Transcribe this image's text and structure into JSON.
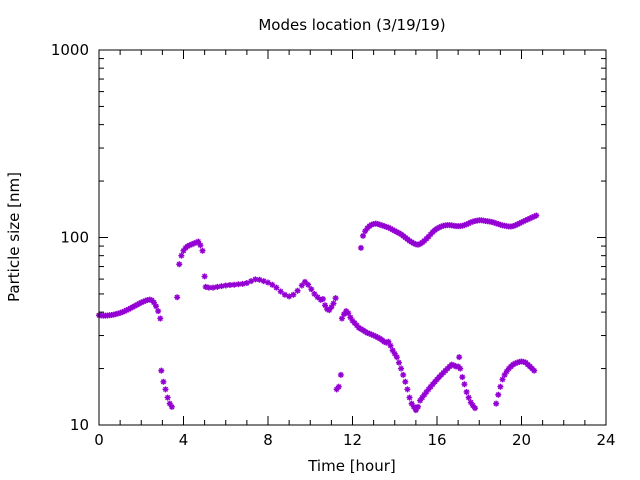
{
  "chart_data": {
    "type": "scatter",
    "title": "Modes location (3/19/19)",
    "xlabel": "Time [hour]",
    "ylabel": "Particle size [nm]",
    "xlim": [
      0,
      24
    ],
    "ylim": [
      10,
      1000
    ],
    "yscale": "log",
    "x_ticks": [
      0,
      4,
      8,
      12,
      16,
      20,
      24
    ],
    "x_tick_labels": [
      "0",
      "4",
      "8",
      "12",
      "16",
      "20",
      "24"
    ],
    "y_ticks": [
      10,
      100,
      1000
    ],
    "y_tick_labels": [
      "10",
      "100",
      "1000"
    ],
    "grid": false,
    "legend": "none",
    "marker": "asterisk",
    "marker_color": "#9400d3",
    "series": [
      {
        "points": [
          [
            0.0,
            38.5
          ],
          [
            0.1,
            38.4
          ],
          [
            0.2,
            38.3
          ],
          [
            0.3,
            38.3
          ],
          [
            0.4,
            38.4
          ],
          [
            0.5,
            38.5
          ],
          [
            0.6,
            38.6
          ],
          [
            0.7,
            38.8
          ],
          [
            0.8,
            39.0
          ],
          [
            0.9,
            39.3
          ],
          [
            1.0,
            39.6
          ],
          [
            1.1,
            40.0
          ],
          [
            1.2,
            40.4
          ],
          [
            1.3,
            40.9
          ],
          [
            1.4,
            41.4
          ],
          [
            1.5,
            42.0
          ],
          [
            1.6,
            42.6
          ],
          [
            1.7,
            43.2
          ],
          [
            1.8,
            43.8
          ],
          [
            1.9,
            44.4
          ],
          [
            2.0,
            45.0
          ],
          [
            2.1,
            45.5
          ],
          [
            2.2,
            46.0
          ],
          [
            2.3,
            46.4
          ],
          [
            2.4,
            46.6
          ],
          [
            2.5,
            46.3
          ],
          [
            2.6,
            45.0
          ],
          [
            2.7,
            43.0
          ],
          [
            2.8,
            40.5
          ],
          [
            2.9,
            37.0
          ],
          [
            2.95,
            19.5
          ],
          [
            3.05,
            17.0
          ],
          [
            3.15,
            15.5
          ],
          [
            3.25,
            14.0
          ],
          [
            3.35,
            13.0
          ],
          [
            3.45,
            12.5
          ],
          [
            3.7,
            48.0
          ],
          [
            3.8,
            72.0
          ],
          [
            3.9,
            80.0
          ],
          [
            4.0,
            85.0
          ],
          [
            4.1,
            88.0
          ],
          [
            4.2,
            90.0
          ],
          [
            4.3,
            91.0
          ],
          [
            4.4,
            92.0
          ],
          [
            4.5,
            93.0
          ],
          [
            4.6,
            94.0
          ],
          [
            4.7,
            95.0
          ],
          [
            4.8,
            91.0
          ],
          [
            4.9,
            85.0
          ],
          [
            5.0,
            62.0
          ],
          [
            5.05,
            54.5
          ],
          [
            5.2,
            54.0
          ],
          [
            5.4,
            54.0
          ],
          [
            5.6,
            54.5
          ],
          [
            5.8,
            55.0
          ],
          [
            6.0,
            55.5
          ],
          [
            6.2,
            55.8
          ],
          [
            6.4,
            56.0
          ],
          [
            6.6,
            56.3
          ],
          [
            6.8,
            56.6
          ],
          [
            7.0,
            57.2
          ],
          [
            7.2,
            58.5
          ],
          [
            7.4,
            59.8
          ],
          [
            7.6,
            59.5
          ],
          [
            7.8,
            58.5
          ],
          [
            8.0,
            57.5
          ],
          [
            8.2,
            56.0
          ],
          [
            8.4,
            54.0
          ],
          [
            8.6,
            51.5
          ],
          [
            8.8,
            49.5
          ],
          [
            9.0,
            48.5
          ],
          [
            9.2,
            49.5
          ],
          [
            9.4,
            52.0
          ],
          [
            9.6,
            55.5
          ],
          [
            9.75,
            58.0
          ],
          [
            9.9,
            56.0
          ],
          [
            10.05,
            53.0
          ],
          [
            10.2,
            50.0
          ],
          [
            10.35,
            48.0
          ],
          [
            10.5,
            46.5
          ],
          [
            10.6,
            47.0
          ],
          [
            10.7,
            43.5
          ],
          [
            10.8,
            41.5
          ],
          [
            10.9,
            41.0
          ],
          [
            11.0,
            42.5
          ],
          [
            11.1,
            44.5
          ],
          [
            11.2,
            47.5
          ],
          [
            11.25,
            15.5
          ],
          [
            11.35,
            16.0
          ],
          [
            11.45,
            18.5
          ],
          [
            11.5,
            37.0
          ],
          [
            11.6,
            39.0
          ],
          [
            11.7,
            40.5
          ],
          [
            11.8,
            39.5
          ],
          [
            11.9,
            37.5
          ],
          [
            12.0,
            36.0
          ],
          [
            12.1,
            35.0
          ],
          [
            12.2,
            34.0
          ],
          [
            12.3,
            33.0
          ],
          [
            12.4,
            32.5
          ],
          [
            12.5,
            32.0
          ],
          [
            12.6,
            31.5
          ],
          [
            12.7,
            31.0
          ],
          [
            12.8,
            30.7
          ],
          [
            12.9,
            30.4
          ],
          [
            13.0,
            30.0
          ],
          [
            13.1,
            29.7
          ],
          [
            13.2,
            29.3
          ],
          [
            13.3,
            28.9
          ],
          [
            13.4,
            28.4
          ],
          [
            13.5,
            27.8
          ],
          [
            13.6,
            27.5
          ],
          [
            13.7,
            27.8
          ],
          [
            13.8,
            26.5
          ],
          [
            13.9,
            25.0
          ],
          [
            14.0,
            24.0
          ],
          [
            14.1,
            23.0
          ],
          [
            14.2,
            21.5
          ],
          [
            14.3,
            20.0
          ],
          [
            14.4,
            18.5
          ],
          [
            14.5,
            17.0
          ],
          [
            14.6,
            15.5
          ],
          [
            14.7,
            14.0
          ],
          [
            14.8,
            13.0
          ],
          [
            14.9,
            12.5
          ],
          [
            15.0,
            12.0
          ],
          [
            15.1,
            12.5
          ],
          [
            15.2,
            13.5
          ],
          [
            15.3,
            14.0
          ],
          [
            15.4,
            14.5
          ],
          [
            15.5,
            15.0
          ],
          [
            15.6,
            15.5
          ],
          [
            15.7,
            16.0
          ],
          [
            15.8,
            16.5
          ],
          [
            15.9,
            17.0
          ],
          [
            16.0,
            17.5
          ],
          [
            16.1,
            18.0
          ],
          [
            16.2,
            18.5
          ],
          [
            16.3,
            19.0
          ],
          [
            16.4,
            19.5
          ],
          [
            16.5,
            20.0
          ],
          [
            16.6,
            20.5
          ],
          [
            16.7,
            21.0
          ],
          [
            16.8,
            20.8
          ],
          [
            16.9,
            20.5
          ],
          [
            17.0,
            20.5
          ],
          [
            17.05,
            23.0
          ],
          [
            17.1,
            20.0
          ],
          [
            17.2,
            18.0
          ],
          [
            17.3,
            16.5
          ],
          [
            17.4,
            15.0
          ],
          [
            17.5,
            14.0
          ],
          [
            17.6,
            13.2
          ],
          [
            17.7,
            12.7
          ],
          [
            17.8,
            12.3
          ],
          [
            18.8,
            13.0
          ],
          [
            18.9,
            14.5
          ],
          [
            19.0,
            16.0
          ],
          [
            19.1,
            17.5
          ],
          [
            19.2,
            18.5
          ],
          [
            19.3,
            19.3
          ],
          [
            19.4,
            20.0
          ],
          [
            19.5,
            20.5
          ],
          [
            19.6,
            21.0
          ],
          [
            19.7,
            21.3
          ],
          [
            19.8,
            21.5
          ],
          [
            19.9,
            21.7
          ],
          [
            20.0,
            21.8
          ],
          [
            20.1,
            21.7
          ],
          [
            20.2,
            21.5
          ],
          [
            20.3,
            21.0
          ],
          [
            20.4,
            20.5
          ],
          [
            20.5,
            20.0
          ],
          [
            20.6,
            19.5
          ],
          [
            12.4,
            88.0
          ],
          [
            12.5,
            102.0
          ],
          [
            12.6,
            108.0
          ],
          [
            12.7,
            112.0
          ],
          [
            12.8,
            115.0
          ],
          [
            12.9,
            117.0
          ],
          [
            13.0,
            118.0
          ],
          [
            13.1,
            118.5
          ],
          [
            13.2,
            118.0
          ],
          [
            13.3,
            117.0
          ],
          [
            13.4,
            116.0
          ],
          [
            13.5,
            115.0
          ],
          [
            13.6,
            114.0
          ],
          [
            13.7,
            113.0
          ],
          [
            13.8,
            111.5
          ],
          [
            13.9,
            110.0
          ],
          [
            14.0,
            108.5
          ],
          [
            14.1,
            107.0
          ],
          [
            14.2,
            105.5
          ],
          [
            14.3,
            104.0
          ],
          [
            14.4,
            102.0
          ],
          [
            14.5,
            100.0
          ],
          [
            14.6,
            98.0
          ],
          [
            14.7,
            96.0
          ],
          [
            14.8,
            94.5
          ],
          [
            14.9,
            93.0
          ],
          [
            15.0,
            92.0
          ],
          [
            15.1,
            91.5
          ],
          [
            15.2,
            92.5
          ],
          [
            15.3,
            94.0
          ],
          [
            15.4,
            96.0
          ],
          [
            15.5,
            98.5
          ],
          [
            15.6,
            101.0
          ],
          [
            15.7,
            104.0
          ],
          [
            15.8,
            107.0
          ],
          [
            15.9,
            109.5
          ],
          [
            16.0,
            111.5
          ],
          [
            16.1,
            113.0
          ],
          [
            16.2,
            114.5
          ],
          [
            16.3,
            115.5
          ],
          [
            16.4,
            116.0
          ],
          [
            16.5,
            116.5
          ],
          [
            16.6,
            116.5
          ],
          [
            16.7,
            116.0
          ],
          [
            16.8,
            115.5
          ],
          [
            16.9,
            115.0
          ],
          [
            17.0,
            115.0
          ],
          [
            17.1,
            115.0
          ],
          [
            17.2,
            115.5
          ],
          [
            17.3,
            116.5
          ],
          [
            17.4,
            117.5
          ],
          [
            17.5,
            119.0
          ],
          [
            17.6,
            120.5
          ],
          [
            17.7,
            121.5
          ],
          [
            17.8,
            122.5
          ],
          [
            17.9,
            123.0
          ],
          [
            18.0,
            123.5
          ],
          [
            18.1,
            123.5
          ],
          [
            18.2,
            123.0
          ],
          [
            18.3,
            122.5
          ],
          [
            18.4,
            122.0
          ],
          [
            18.5,
            121.5
          ],
          [
            18.6,
            121.0
          ],
          [
            18.7,
            120.0
          ],
          [
            18.8,
            119.0
          ],
          [
            18.9,
            118.0
          ],
          [
            19.0,
            117.0
          ],
          [
            19.1,
            116.0
          ],
          [
            19.2,
            115.5
          ],
          [
            19.3,
            115.0
          ],
          [
            19.4,
            114.5
          ],
          [
            19.5,
            114.5
          ],
          [
            19.6,
            115.0
          ],
          [
            19.7,
            116.0
          ],
          [
            19.8,
            117.5
          ],
          [
            19.9,
            119.0
          ],
          [
            20.0,
            120.5
          ],
          [
            20.1,
            122.0
          ],
          [
            20.2,
            123.5
          ],
          [
            20.3,
            125.0
          ],
          [
            20.4,
            126.5
          ],
          [
            20.5,
            128.0
          ],
          [
            20.6,
            129.5
          ],
          [
            20.7,
            131.0
          ]
        ]
      }
    ]
  }
}
